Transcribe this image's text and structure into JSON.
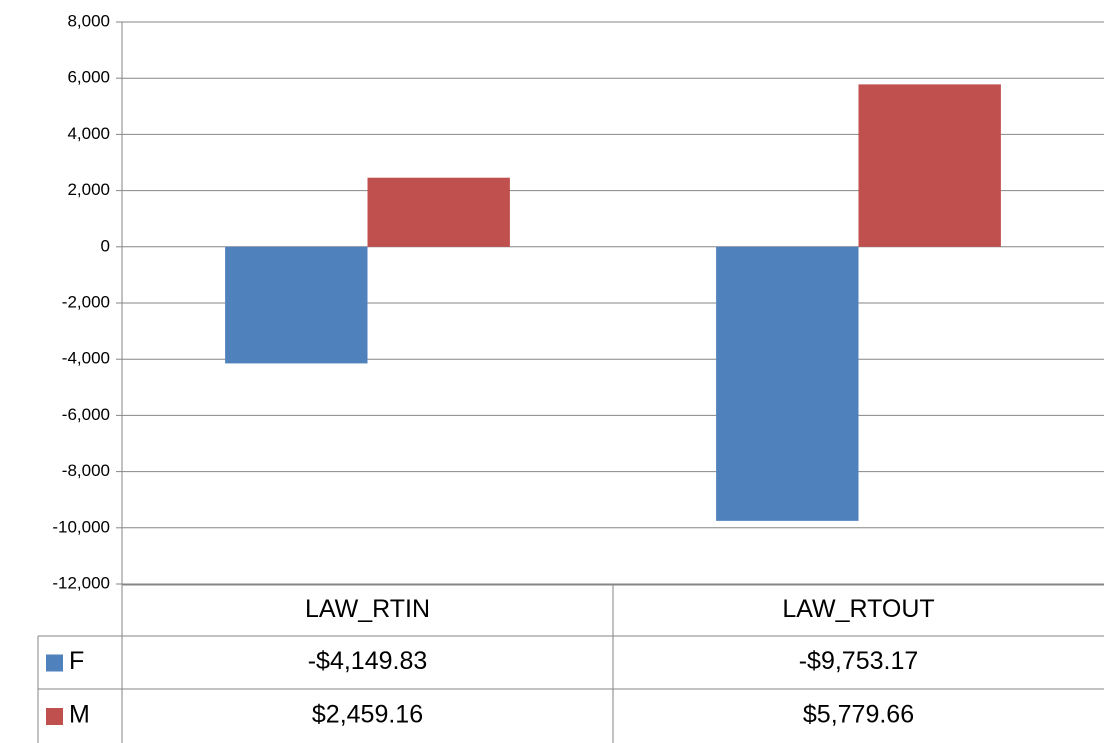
{
  "chart_data": {
    "type": "bar",
    "categories": [
      "LAW_RTIN",
      "LAW_RTOUT"
    ],
    "series": [
      {
        "name": "F",
        "color": "#4f81bd",
        "values": [
          -4149.83,
          -9753.17
        ],
        "value_labels": [
          "-$4,149.83",
          "-$9,753.17"
        ]
      },
      {
        "name": "M",
        "color": "#c0504d",
        "values": [
          2459.16,
          5779.66
        ],
        "value_labels": [
          "$2,459.16",
          "$5,779.66"
        ]
      }
    ],
    "ylim": [
      -12000,
      8000
    ],
    "yticks": [
      {
        "value": -12000,
        "label": "-12,000"
      },
      {
        "value": -10000,
        "label": "-10,000"
      },
      {
        "value": -8000,
        "label": "-8,000"
      },
      {
        "value": -6000,
        "label": "-6,000"
      },
      {
        "value": -4000,
        "label": "-4,000"
      },
      {
        "value": -2000,
        "label": "-2,000"
      },
      0,
      {
        "value": 2000,
        "label": "2,000"
      },
      {
        "value": 4000,
        "label": "4,000"
      },
      {
        "value": 6000,
        "label": "6,000"
      },
      {
        "value": 8000,
        "label": "8,000"
      }
    ],
    "grid": true
  }
}
